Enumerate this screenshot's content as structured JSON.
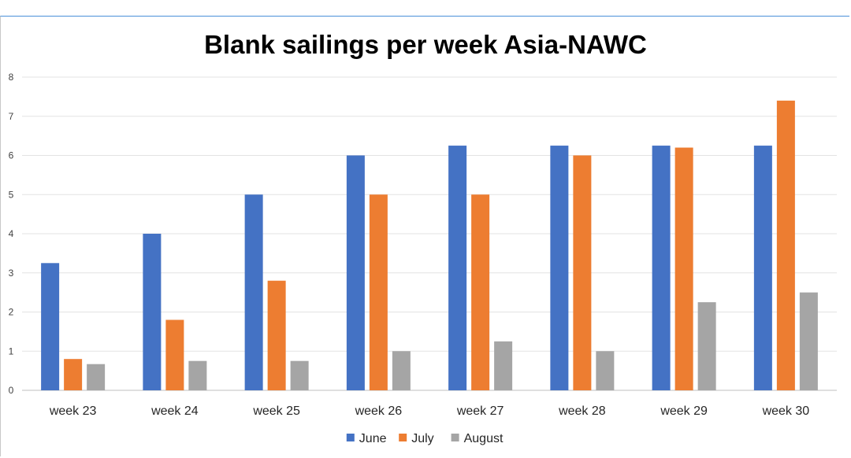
{
  "chart_data": {
    "type": "bar",
    "title": "Blank sailings per week Asia-NAWC",
    "xlabel": "",
    "ylabel": "",
    "categories": [
      "week 23",
      "week 24",
      "week 25",
      "week 26",
      "week 27",
      "week 28",
      "week 29",
      "week 30"
    ],
    "series": [
      {
        "name": "June",
        "color": "#4472C4",
        "values": [
          3.25,
          4,
          5,
          6,
          6.25,
          6.25,
          6.25,
          6.25
        ]
      },
      {
        "name": "July",
        "color": "#ED7D31",
        "values": [
          0.8,
          1.8,
          2.8,
          5,
          5,
          6,
          6.2,
          7.4
        ]
      },
      {
        "name": "August",
        "color": "#A5A5A5",
        "values": [
          0.67,
          0.75,
          0.75,
          1,
          1.25,
          1,
          2.25,
          2.5
        ]
      }
    ],
    "ylim": [
      0,
      8
    ],
    "yticks": [
      "0",
      "1",
      "2",
      "3",
      "4",
      "5",
      "6",
      "7",
      "8"
    ],
    "grid": true,
    "legend_position": "bottom"
  }
}
